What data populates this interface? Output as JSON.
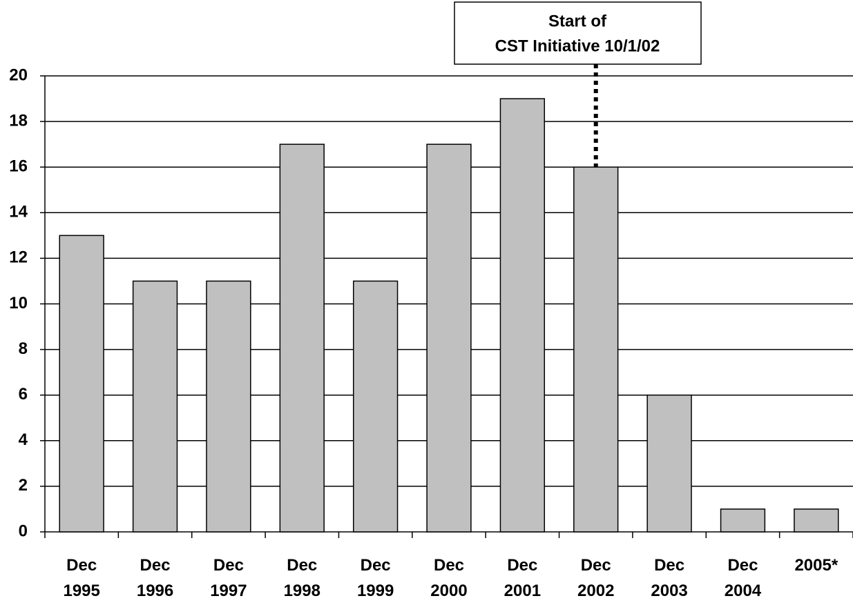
{
  "chart_data": {
    "type": "bar",
    "categories": [
      "Dec 1995",
      "Dec 1996",
      "Dec 1997",
      "Dec 1998",
      "Dec 1999",
      "Dec 2000",
      "Dec 2001",
      "Dec 2002",
      "Dec 2003",
      "Dec 2004",
      "2005*"
    ],
    "values": [
      13,
      11,
      11,
      17,
      11,
      17,
      19,
      16,
      6,
      1,
      1
    ],
    "color": "#c0c0c0",
    "ylim": [
      0,
      20
    ],
    "yticks": [
      0,
      2,
      4,
      6,
      8,
      10,
      12,
      14,
      16,
      18,
      20
    ],
    "grid": true,
    "annotation": [
      "Start of",
      "CST Initiative 10/1/02"
    ]
  }
}
